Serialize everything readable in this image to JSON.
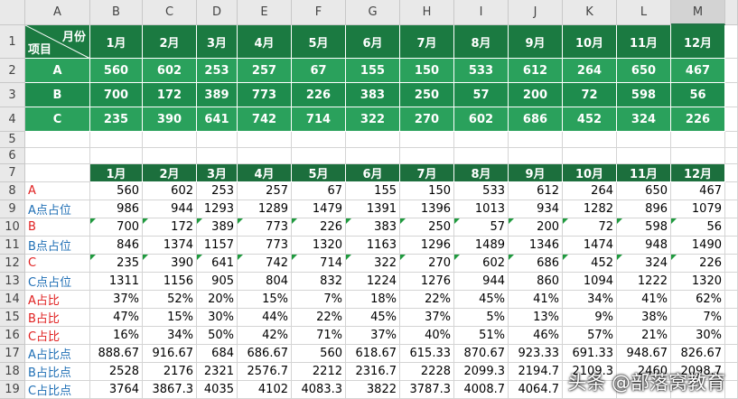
{
  "column_headers": [
    "A",
    "B",
    "C",
    "D",
    "E",
    "F",
    "G",
    "H",
    "I",
    "J",
    "K",
    "L",
    "M"
  ],
  "row_numbers": [
    1,
    2,
    3,
    4,
    5,
    6,
    7,
    8,
    9,
    10,
    11,
    12,
    13,
    14,
    15,
    16,
    17,
    18,
    19
  ],
  "top_table": {
    "corner_top": "月份",
    "corner_bottom": "项目",
    "months": [
      "1月",
      "2月",
      "3月",
      "4月",
      "5月",
      "6月",
      "7月",
      "8月",
      "9月",
      "10月",
      "11月",
      "12月"
    ],
    "rows": [
      {
        "label": "A",
        "values": [
          560,
          602,
          253,
          257,
          67,
          155,
          150,
          533,
          612,
          264,
          650,
          467
        ]
      },
      {
        "label": "B",
        "values": [
          700,
          172,
          389,
          773,
          226,
          383,
          250,
          57,
          200,
          72,
          598,
          56
        ]
      },
      {
        "label": "C",
        "values": [
          235,
          390,
          641,
          742,
          714,
          322,
          270,
          602,
          686,
          452,
          324,
          226
        ]
      }
    ]
  },
  "lower_table": {
    "months": [
      "1月",
      "2月",
      "3月",
      "4月",
      "5月",
      "6月",
      "7月",
      "8月",
      "9月",
      "10月",
      "11月",
      "12月"
    ],
    "rows": [
      {
        "label": "A",
        "values": [
          560,
          602,
          253,
          257,
          67,
          155,
          150,
          533,
          612,
          264,
          650,
          467
        ]
      },
      {
        "label": "A点占位",
        "values": [
          986,
          944,
          1293,
          1289,
          1479,
          1391,
          1396,
          1013,
          934,
          1282,
          896,
          1079
        ]
      },
      {
        "label": "B",
        "values": [
          700,
          172,
          389,
          773,
          226,
          383,
          250,
          57,
          200,
          72,
          598,
          56
        ]
      },
      {
        "label": "B点占位",
        "values": [
          846,
          1374,
          1157,
          773,
          1320,
          1163,
          1296,
          1489,
          1346,
          1474,
          948,
          1490
        ]
      },
      {
        "label": "C",
        "values": [
          235,
          390,
          641,
          742,
          714,
          322,
          270,
          602,
          686,
          452,
          324,
          226
        ]
      },
      {
        "label": "C点占位",
        "values": [
          1311,
          1156,
          905,
          804,
          832,
          1224,
          1276,
          944,
          860,
          1094,
          1222,
          1320
        ]
      },
      {
        "label": "A占比",
        "values": [
          "37%",
          "52%",
          "20%",
          "15%",
          "7%",
          "18%",
          "22%",
          "45%",
          "41%",
          "34%",
          "41%",
          "62%"
        ]
      },
      {
        "label": "B占比",
        "values": [
          "47%",
          "15%",
          "30%",
          "44%",
          "22%",
          "45%",
          "37%",
          "5%",
          "13%",
          "9%",
          "38%",
          "7%"
        ]
      },
      {
        "label": "C占比",
        "values": [
          "16%",
          "34%",
          "50%",
          "42%",
          "71%",
          "37%",
          "40%",
          "51%",
          "46%",
          "57%",
          "21%",
          "30%"
        ]
      },
      {
        "label": "A占比点",
        "values": [
          888.67,
          916.67,
          684,
          686.67,
          560,
          618.67,
          615.33,
          870.67,
          923.33,
          691.33,
          948.67,
          826.67
        ]
      },
      {
        "label": "B占比点",
        "values": [
          2528,
          2176,
          2321,
          2576.7,
          2212,
          2316.7,
          2228,
          2099.3,
          2194.7,
          2109.3,
          2460,
          2098.7
        ]
      },
      {
        "label": "C占比点",
        "values": [
          3764,
          3867.3,
          4035,
          4102,
          4083.3,
          3822,
          3787.3,
          4008.7,
          4064.7,
          null,
          null,
          null
        ]
      }
    ]
  },
  "watermark": "头条 @部落窝教育"
}
